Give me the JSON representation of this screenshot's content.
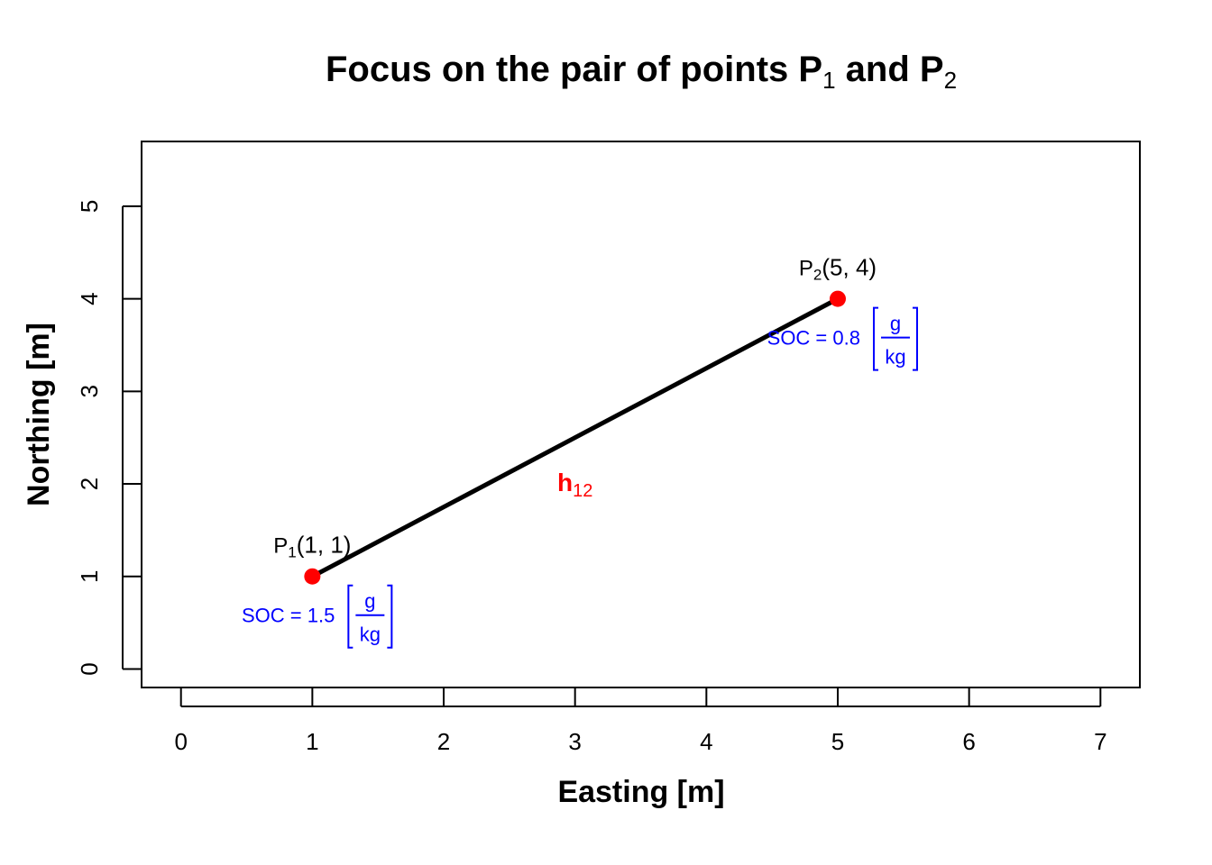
{
  "chart_data": {
    "type": "scatter",
    "title": {
      "prefix": "Focus on the pair of points ",
      "p1": "P",
      "p1_sub": "1",
      "mid": " and ",
      "p2": "P",
      "p2_sub": "2"
    },
    "xlabel": "Easting [m]",
    "ylabel": "Northing [m]",
    "xlim": [
      -0.3,
      7.3
    ],
    "ylim": [
      -0.2,
      5.7
    ],
    "xticks": [
      0,
      1,
      2,
      3,
      4,
      5,
      6,
      7
    ],
    "yticks": [
      0,
      1,
      2,
      3,
      4,
      5
    ],
    "grid": false,
    "legend": "none",
    "colors": {
      "points": "#ff0000",
      "segment": "#000000",
      "soc": "#0000ff",
      "segment_label": "#ff0000"
    },
    "points": [
      {
        "id": "p1",
        "label": "P",
        "sub": "1",
        "coord_text": "(1, 1)",
        "x": 1,
        "y": 1,
        "soc_text": "SOC = 1.5",
        "unit_num": "g",
        "unit_den": "kg"
      },
      {
        "id": "p2",
        "label": "P",
        "sub": "2",
        "coord_text": "(5, 4)",
        "x": 5,
        "y": 4,
        "soc_text": "SOC = 0.8",
        "unit_num": "g",
        "unit_den": "kg"
      }
    ],
    "segment": {
      "from": [
        1,
        1
      ],
      "to": [
        5,
        4
      ],
      "label": "h",
      "label_sub": "12",
      "label_x": 3,
      "label_y": 2
    }
  }
}
